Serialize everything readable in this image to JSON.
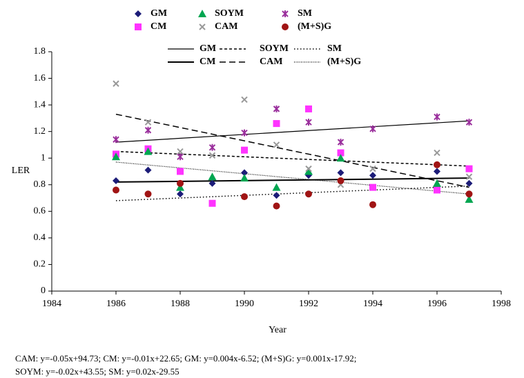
{
  "chart_data": {
    "type": "scatter",
    "xlabel": "Year",
    "ylabel": "LER",
    "xlim": [
      1984,
      1998
    ],
    "xticks": [
      1984,
      1986,
      1988,
      1990,
      1992,
      1994,
      1996,
      1998
    ],
    "ylim": [
      0,
      1.8
    ],
    "yticks": [
      0,
      0.2,
      0.4,
      0.6,
      0.8,
      1,
      1.2,
      1.4,
      1.6,
      1.8
    ],
    "x": [
      1986,
      1987,
      1988,
      1989,
      1990,
      1991,
      1992,
      1993,
      1994,
      1996,
      1997
    ],
    "series": [
      {
        "name": "GM",
        "color": "#1c1c78",
        "marker": "diamond",
        "values": [
          0.83,
          0.91,
          0.73,
          0.81,
          0.89,
          0.72,
          0.87,
          0.89,
          0.87,
          0.9,
          0.81
        ]
      },
      {
        "name": "CM",
        "color": "#ff33ff",
        "marker": "square",
        "values": [
          1.03,
          1.07,
          0.9,
          0.66,
          1.06,
          1.26,
          1.37,
          1.04,
          0.78,
          0.76,
          0.92
        ]
      },
      {
        "name": "SOYM",
        "color": "#00a651",
        "marker": "triangle",
        "values": [
          1.01,
          1.05,
          0.78,
          0.86,
          0.85,
          0.78,
          0.9,
          1.0,
          null,
          0.81,
          0.69
        ]
      },
      {
        "name": "CAM",
        "color": "#999999",
        "marker": "cross",
        "values": [
          1.56,
          1.27,
          1.05,
          1.02,
          1.44,
          1.1,
          0.92,
          0.8,
          0.92,
          1.04,
          0.86
        ]
      },
      {
        "name": "SM",
        "color": "#9a2f9c",
        "marker": "star",
        "values": [
          1.14,
          1.21,
          1.01,
          1.08,
          1.19,
          1.37,
          1.27,
          1.12,
          1.22,
          1.31,
          1.27
        ]
      },
      {
        "name": "(M+S)G",
        "color": "#a01414",
        "marker": "circle",
        "values": [
          0.76,
          0.73,
          0.81,
          null,
          0.71,
          0.64,
          0.73,
          0.83,
          0.65,
          0.95,
          0.73
        ]
      }
    ],
    "trend_lines": [
      {
        "name": "GM",
        "width": 1.2,
        "dash": "none",
        "x": [
          1986,
          1997
        ],
        "values": [
          1.12,
          1.28
        ]
      },
      {
        "name": "CM",
        "width": 2,
        "dash": "none",
        "x": [
          1986,
          1997
        ],
        "values": [
          0.82,
          0.85
        ]
      },
      {
        "name": "SOYM",
        "width": 1.5,
        "dash": "4,3",
        "x": [
          1986,
          1997
        ],
        "values": [
          1.05,
          0.94
        ]
      },
      {
        "name": "CAM",
        "width": 1.5,
        "dash": "9,5",
        "x": [
          1986,
          1997
        ],
        "values": [
          1.33,
          0.78
        ]
      },
      {
        "name": "SM",
        "width": 1.5,
        "dash": "1.5,3",
        "x": [
          1986,
          1997
        ],
        "values": [
          0.68,
          0.79
        ]
      },
      {
        "name": "(M+S)G",
        "width": 1.2,
        "dash": "1,1.5",
        "x": [
          1986,
          1997
        ],
        "values": [
          0.97,
          0.73
        ]
      }
    ],
    "footnote": [
      "CAM: y=-0.05x+94.73; CM: y=-0.01x+22.65; GM: y=0.004x-6.52; (M+S)G: y=0.001x-17.92;",
      "SOYM: y=-0.02x+43.55; SM: y=0.02x-29.55"
    ]
  }
}
